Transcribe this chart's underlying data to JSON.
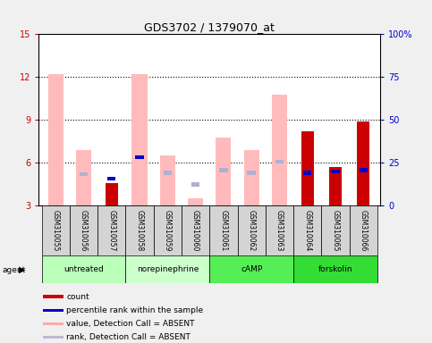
{
  "title": "GDS3702 / 1379070_at",
  "samples": [
    "GSM310055",
    "GSM310056",
    "GSM310057",
    "GSM310058",
    "GSM310059",
    "GSM310060",
    "GSM310061",
    "GSM310062",
    "GSM310063",
    "GSM310064",
    "GSM310065",
    "GSM310066"
  ],
  "agents": [
    {
      "label": "untreated",
      "indices": [
        0,
        1,
        2
      ],
      "color": "#bbffbb"
    },
    {
      "label": "norepinephrine",
      "indices": [
        3,
        4,
        5
      ],
      "color": "#ccffcc"
    },
    {
      "label": "cAMP",
      "indices": [
        6,
        7,
        8
      ],
      "color": "#55ee55"
    },
    {
      "label": "forskolin",
      "indices": [
        9,
        10,
        11
      ],
      "color": "#33dd33"
    }
  ],
  "pink_bar_values": [
    12.2,
    6.9,
    null,
    12.2,
    6.5,
    3.5,
    7.8,
    6.9,
    10.8,
    null,
    null,
    null
  ],
  "red_bar_values": [
    null,
    null,
    4.6,
    null,
    null,
    null,
    null,
    null,
    null,
    8.2,
    5.7,
    8.9
  ],
  "blue_bar_values": [
    null,
    null,
    4.9,
    6.4,
    null,
    null,
    null,
    null,
    null,
    5.3,
    5.4,
    5.5
  ],
  "lavender_bar_values": [
    null,
    5.2,
    null,
    null,
    5.3,
    4.5,
    5.5,
    5.3,
    6.1,
    null,
    null,
    null
  ],
  "ylim_left": [
    3,
    15
  ],
  "ylim_right": [
    0,
    100
  ],
  "yticks_left": [
    3,
    6,
    9,
    12,
    15
  ],
  "yticks_right": [
    0,
    25,
    50,
    75,
    100
  ],
  "ytick_labels_right": [
    "0",
    "25",
    "50",
    "75",
    "100%"
  ],
  "left_tick_color": "#cc0000",
  "right_tick_color": "#0000cc",
  "legend_items": [
    {
      "color": "#cc0000",
      "label": "count"
    },
    {
      "color": "#0000cc",
      "label": "percentile rank within the sample"
    },
    {
      "color": "#ffaaaa",
      "label": "value, Detection Call = ABSENT"
    },
    {
      "color": "#c0b8d8",
      "label": "rank, Detection Call = ABSENT"
    }
  ]
}
